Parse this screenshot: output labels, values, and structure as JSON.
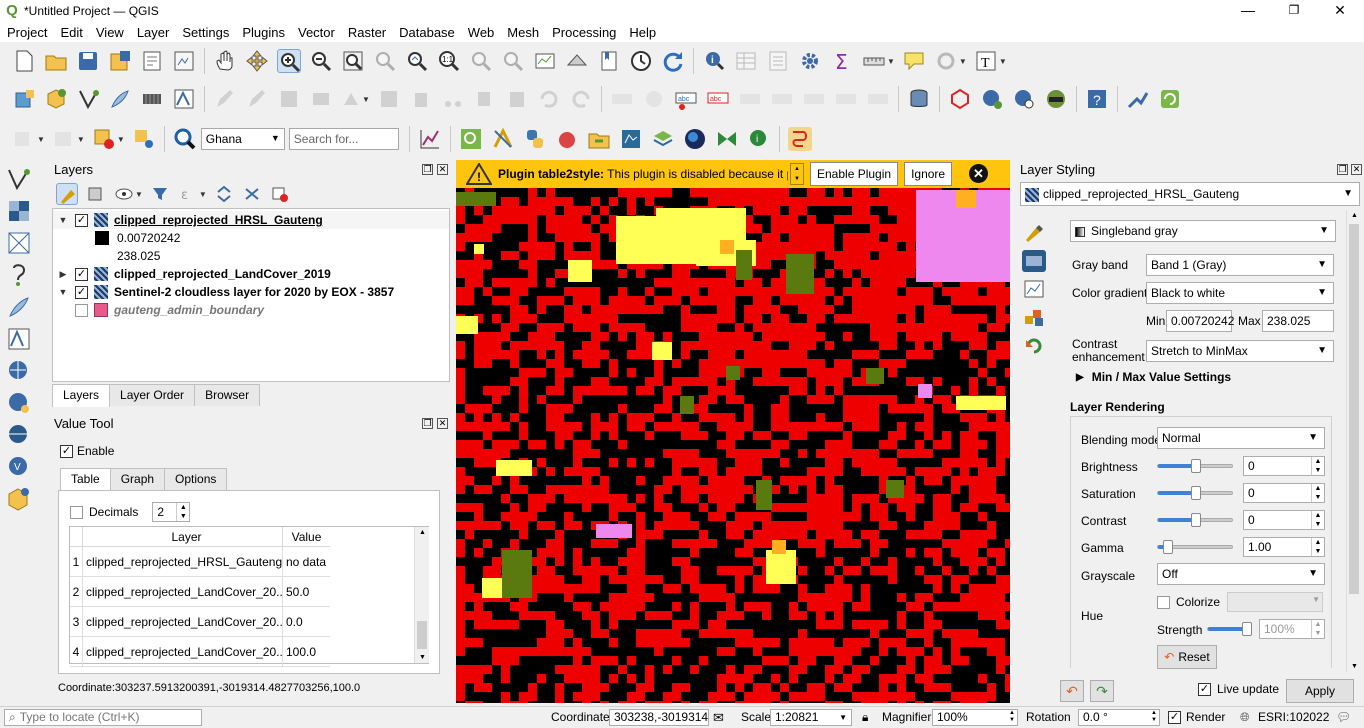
{
  "window": {
    "title": "*Untitled Project — QGIS",
    "minimize": "—",
    "maximize": "❐",
    "close": "✕"
  },
  "menu": [
    "Project",
    "Edit",
    "View",
    "Layer",
    "Settings",
    "Plugins",
    "Vector",
    "Raster",
    "Database",
    "Web",
    "Mesh",
    "Processing",
    "Help"
  ],
  "toolbar": {
    "locator_combo": "Ghana",
    "search_placeholder": "Search for..."
  },
  "layers_panel": {
    "title": "Layers",
    "items": [
      {
        "name": "clipped_reprojected_HRSL_Gauteng",
        "checked": true,
        "expanded": true,
        "bold": true,
        "underline": true
      },
      {
        "legend_min": "0.00720242",
        "legend_max": "238.025"
      },
      {
        "name": "clipped_reprojected_LandCover_2019",
        "checked": true,
        "expanded": false,
        "bold": true
      },
      {
        "name": "Sentinel-2 cloudless layer for 2020 by EOX - 3857",
        "checked": true,
        "expanded": true,
        "bold": true
      },
      {
        "name": "gauteng_admin_boundary",
        "checked": false,
        "italic": true,
        "swatch": "#e85a8c"
      }
    ],
    "tabs": [
      "Layers",
      "Layer Order",
      "Browser"
    ]
  },
  "value_tool": {
    "title": "Value Tool",
    "enable_label": "Enable",
    "tabs": [
      "Table",
      "Graph",
      "Options"
    ],
    "decimals_label": "Decimals",
    "decimals_value": "2",
    "columns": [
      "Layer",
      "Value"
    ],
    "rows": [
      {
        "n": "1",
        "layer": "clipped_reprojected_HRSL_Gauteng",
        "value": "no data"
      },
      {
        "n": "2",
        "layer": "clipped_reprojected_LandCover_20...",
        "value": "50.0"
      },
      {
        "n": "3",
        "layer": "clipped_reprojected_LandCover_20...",
        "value": "0.0"
      },
      {
        "n": "4",
        "layer": "clipped_reprojected_LandCover_20...",
        "value": "100.0"
      }
    ],
    "coordinate": "Coordinate:303237.5913200391,-3019314.4827703256,100.0"
  },
  "plugin_bar": {
    "bold": "Plugin table2style:",
    "text": " This plugin is disabled because it previously crashed QGIS",
    "enable_button": "Enable Plugin",
    "ignore_button": "Ignore",
    "close": "✕",
    "color": "#ffc40d"
  },
  "map": {
    "colors": {
      "background": "#ee0000",
      "black": "#000000",
      "yellow": "#ffff55",
      "pink": "#ee88ee",
      "green": "#5a7a10",
      "orange": "#ffb020"
    }
  },
  "styling": {
    "title": "Layer Styling",
    "layer": "clipped_reprojected_HRSL_Gauteng",
    "renderer": "Singleband gray",
    "gray_band_label": "Gray band",
    "gray_band": "Band 1 (Gray)",
    "gradient_label": "Color gradient",
    "gradient": "Black to white",
    "min_label": "Min",
    "min": "0.00720242",
    "max_label": "Max",
    "max": "238.025",
    "contrast_label": "Contrast enhancement",
    "contrast": "Stretch to MinMax",
    "minmax_settings": "Min / Max Value Settings",
    "rendering_title": "Layer Rendering",
    "blending_label": "Blending mode",
    "blending": "Normal",
    "brightness_label": "Brightness",
    "brightness": "0",
    "saturation_label": "Saturation",
    "saturation": "0",
    "contrast2_label": "Contrast",
    "contrast2": "0",
    "gamma_label": "Gamma",
    "gamma": "1.00",
    "grayscale_label": "Grayscale",
    "grayscale": "Off",
    "hue_label": "Hue",
    "colorize_label": "Colorize",
    "strength_label": "Strength",
    "strength": "100%",
    "reset_label": "Reset",
    "live_update_label": "Live update",
    "apply_label": "Apply"
  },
  "status": {
    "locate_placeholder": "Type to locate (Ctrl+K)",
    "coordinate_label": "Coordinate",
    "coordinate": "303238,-3019314",
    "scale_label": "Scale",
    "scale": "1:20821",
    "magnifier_label": "Magnifier",
    "magnifier": "100%",
    "rotation_label": "Rotation",
    "rotation": "0.0 °",
    "render_label": "Render",
    "crs": "ESRI:102022"
  }
}
